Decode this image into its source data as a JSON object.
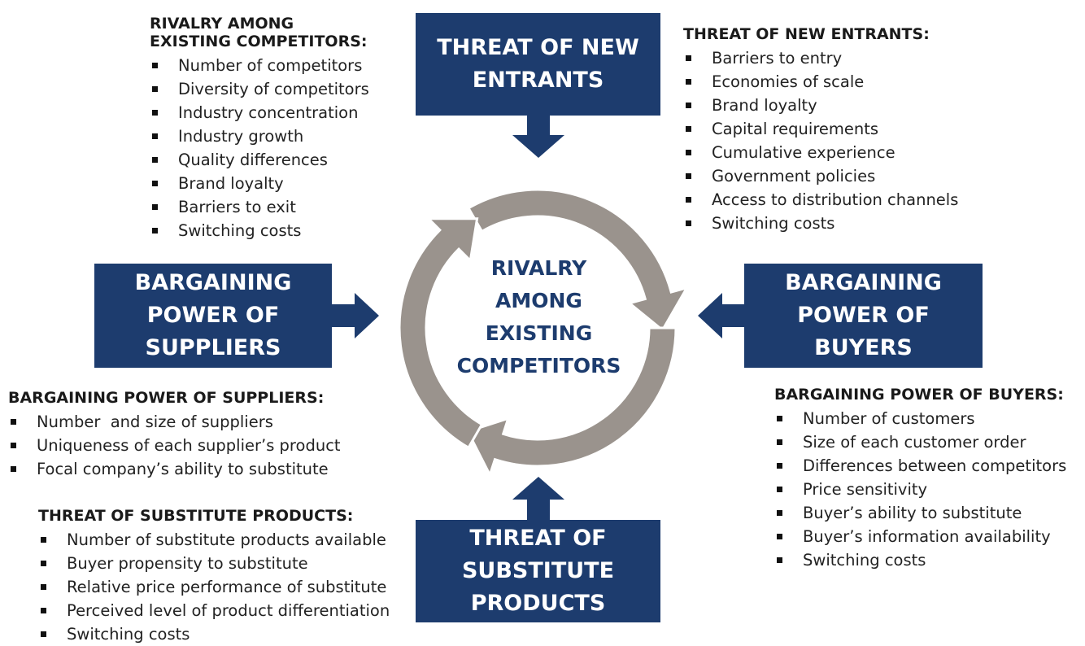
{
  "colors": {
    "box_fill": "#1d3c6e",
    "box_text": "#ffffff",
    "cycle_fill": "#9a938d",
    "center_text": "#1d3c6e"
  },
  "center": {
    "lines": [
      "RIVALRY",
      "AMONG",
      "EXISTING",
      "COMPETITORS"
    ]
  },
  "forces": {
    "new_entrants": {
      "lines": [
        "THREAT OF NEW",
        "ENTRANTS"
      ]
    },
    "suppliers": {
      "lines": [
        "BARGAINING",
        "POWER OF",
        "SUPPLIERS"
      ]
    },
    "buyers": {
      "lines": [
        "BARGAINING",
        "POWER OF",
        "BUYERS"
      ]
    },
    "substitutes": {
      "lines": [
        "THREAT OF",
        "SUBSTITUTE",
        "PRODUCTS"
      ]
    }
  },
  "sections": {
    "rivalry": {
      "title_lines": [
        "RIVALRY AMONG",
        "EXISTING COMPETITORS:"
      ],
      "items": [
        "Number of competitors",
        "Diversity of competitors",
        "Industry concentration",
        "Industry growth",
        "Quality differences",
        "Brand loyalty",
        "Barriers to exit",
        "Switching costs"
      ]
    },
    "new_entrants": {
      "title_lines": [
        "THREAT OF NEW ENTRANTS:"
      ],
      "items": [
        "Barriers to entry",
        "Economies of scale",
        "Brand loyalty",
        "Capital requirements",
        "Cumulative experience",
        "Government policies",
        "Access to distribution channels",
        "Switching costs"
      ]
    },
    "suppliers": {
      "title_lines": [
        "BARGAINING POWER OF SUPPLIERS:"
      ],
      "items": [
        "Number  and size of suppliers",
        "Uniqueness of each supplier’s product",
        "Focal company’s ability to substitute"
      ]
    },
    "buyers": {
      "title_lines": [
        "BARGAINING POWER OF BUYERS:"
      ],
      "items": [
        "Number of customers",
        "Size of each customer order",
        "Differences between competitors",
        "Price sensitivity",
        "Buyer’s ability to substitute",
        "Buyer’s information availability",
        "Switching costs"
      ]
    },
    "substitutes": {
      "title_lines": [
        "THREAT OF SUBSTITUTE PRODUCTS:"
      ],
      "items": [
        "Number of substitute products available",
        "Buyer propensity to substitute",
        "Relative price performance of substitute",
        "Perceived level of product differentiation",
        "Switching costs"
      ]
    }
  }
}
